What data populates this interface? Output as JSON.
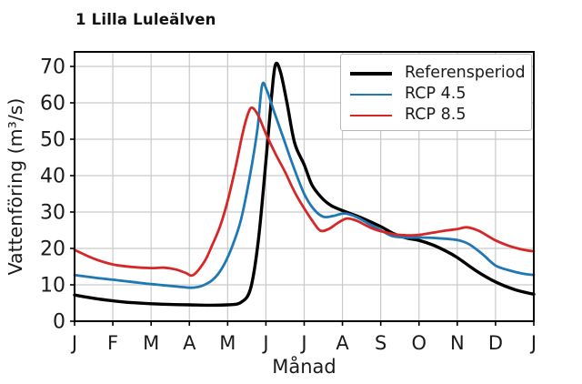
{
  "figure": {
    "title": "1 Lilla Luleälven",
    "xlabel": "Månad",
    "ylabel": "Vattenföring (m³/s)"
  },
  "legend": {
    "position": "upper right",
    "items": [
      {
        "label": "Referensperiod",
        "color": "#000000",
        "line_width": 3.4
      },
      {
        "label": "RCP 4.5",
        "color": "#1f77b4",
        "line_width": 2.8
      },
      {
        "label": "RCP 8.5",
        "color": "#d62728",
        "line_width": 2.8
      }
    ]
  },
  "chart_data": {
    "type": "line",
    "title": "1 Lilla Luleälven",
    "xlabel": "Månad",
    "ylabel": "Vattenföring (m³/s)",
    "x_tick_labels": [
      "J",
      "F",
      "M",
      "A",
      "M",
      "J",
      "J",
      "A",
      "S",
      "O",
      "N",
      "D",
      "J"
    ],
    "y_ticks": [
      0,
      10,
      20,
      30,
      40,
      50,
      60,
      70
    ],
    "xlim": [
      0,
      12
    ],
    "ylim": [
      0,
      74
    ],
    "grid": true,
    "grid_color": "#c9c9c9",
    "axis_color": "#000000",
    "legend_position": "upper right",
    "series": [
      {
        "name": "Referensperiod",
        "color": "#000000",
        "width": 3.4,
        "points": [
          [
            0,
            7.2
          ],
          [
            0.5,
            6.3
          ],
          [
            1,
            5.6
          ],
          [
            1.5,
            5.1
          ],
          [
            2,
            4.8
          ],
          [
            2.5,
            4.6
          ],
          [
            3,
            4.5
          ],
          [
            3.5,
            4.4
          ],
          [
            4,
            4.5
          ],
          [
            4.35,
            5.2
          ],
          [
            4.6,
            9
          ],
          [
            4.8,
            22
          ],
          [
            5.0,
            44
          ],
          [
            5.15,
            62
          ],
          [
            5.25,
            70.5
          ],
          [
            5.38,
            68.5
          ],
          [
            5.55,
            60
          ],
          [
            5.75,
            49
          ],
          [
            6.0,
            43
          ],
          [
            6.2,
            37.5
          ],
          [
            6.45,
            34
          ],
          [
            6.7,
            31.8
          ],
          [
            7.0,
            30.4
          ],
          [
            7.5,
            28.4
          ],
          [
            8.0,
            26
          ],
          [
            8.35,
            24
          ],
          [
            8.7,
            22.8
          ],
          [
            9.0,
            22.2
          ],
          [
            9.35,
            21
          ],
          [
            9.7,
            19.3
          ],
          [
            10.0,
            17.5
          ],
          [
            10.5,
            13.8
          ],
          [
            11.0,
            10.8
          ],
          [
            11.5,
            8.7
          ],
          [
            12,
            7.4
          ]
        ]
      },
      {
        "name": "RCP 4.5",
        "color": "#1f77b4",
        "width": 2.8,
        "points": [
          [
            0,
            12.7
          ],
          [
            0.5,
            12
          ],
          [
            1,
            11.4
          ],
          [
            1.5,
            10.8
          ],
          [
            2,
            10.2
          ],
          [
            2.5,
            9.7
          ],
          [
            2.8,
            9.4
          ],
          [
            3.05,
            9.2
          ],
          [
            3.3,
            9.6
          ],
          [
            3.6,
            11.3
          ],
          [
            3.85,
            14.5
          ],
          [
            4.1,
            20
          ],
          [
            4.35,
            28
          ],
          [
            4.6,
            41
          ],
          [
            4.78,
            53
          ],
          [
            4.9,
            64.8
          ],
          [
            5.02,
            63.5
          ],
          [
            5.2,
            58
          ],
          [
            5.45,
            50.5
          ],
          [
            5.7,
            43
          ],
          [
            6.0,
            35
          ],
          [
            6.25,
            30.8
          ],
          [
            6.5,
            28.7
          ],
          [
            6.75,
            28.9
          ],
          [
            7.05,
            29.6
          ],
          [
            7.35,
            28.7
          ],
          [
            7.65,
            27
          ],
          [
            8.0,
            25
          ],
          [
            8.3,
            23.4
          ],
          [
            8.65,
            23
          ],
          [
            9.0,
            23
          ],
          [
            9.5,
            22.8
          ],
          [
            10.0,
            22.3
          ],
          [
            10.3,
            21.2
          ],
          [
            10.65,
            18.5
          ],
          [
            11.0,
            15.3
          ],
          [
            11.35,
            14
          ],
          [
            11.7,
            13.1
          ],
          [
            12,
            12.7
          ]
        ]
      },
      {
        "name": "RCP 8.5",
        "color": "#d62728",
        "width": 2.8,
        "points": [
          [
            0,
            19.6
          ],
          [
            0.5,
            17.2
          ],
          [
            1,
            15.6
          ],
          [
            1.5,
            14.9
          ],
          [
            2,
            14.6
          ],
          [
            2.35,
            14.7
          ],
          [
            2.65,
            14.2
          ],
          [
            2.9,
            13.3
          ],
          [
            3.1,
            12.7
          ],
          [
            3.4,
            16.5
          ],
          [
            3.6,
            21
          ],
          [
            3.8,
            26
          ],
          [
            4.0,
            33
          ],
          [
            4.2,
            42
          ],
          [
            4.4,
            52
          ],
          [
            4.55,
            57.5
          ],
          [
            4.65,
            58.6
          ],
          [
            4.8,
            56.5
          ],
          [
            5.0,
            51.5
          ],
          [
            5.25,
            46
          ],
          [
            5.5,
            41
          ],
          [
            5.75,
            35.5
          ],
          [
            6.0,
            31
          ],
          [
            6.2,
            27.8
          ],
          [
            6.42,
            24.9
          ],
          [
            6.65,
            25.4
          ],
          [
            6.85,
            26.8
          ],
          [
            7.1,
            28.2
          ],
          [
            7.35,
            27.7
          ],
          [
            7.6,
            26.4
          ],
          [
            7.85,
            25.2
          ],
          [
            8.1,
            24.5
          ],
          [
            8.4,
            23.8
          ],
          [
            8.7,
            23.6
          ],
          [
            9.0,
            23.7
          ],
          [
            9.35,
            24.3
          ],
          [
            9.7,
            24.9
          ],
          [
            10.0,
            25.3
          ],
          [
            10.25,
            25.8
          ],
          [
            10.55,
            24.9
          ],
          [
            10.8,
            23.4
          ],
          [
            11.0,
            22.2
          ],
          [
            11.35,
            20.7
          ],
          [
            11.7,
            19.7
          ],
          [
            12,
            19.2
          ]
        ]
      }
    ]
  }
}
